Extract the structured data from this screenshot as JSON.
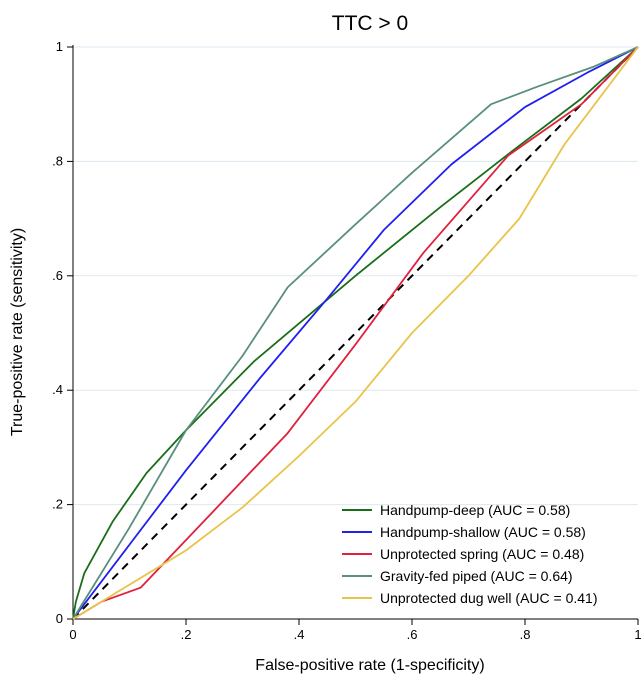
{
  "chart_data": {
    "type": "line",
    "title": "TTC > 0",
    "xlabel": "False-positive rate (1-specificity)",
    "ylabel": "True-positive rate (sensitivity)",
    "xlim": [
      0,
      1
    ],
    "ylim": [
      0,
      1
    ],
    "x_ticks": [
      "0",
      ".2",
      ".4",
      ".6",
      ".8",
      "1"
    ],
    "y_ticks": [
      "0",
      ".2",
      ".4",
      ".6",
      ".8",
      "1"
    ],
    "grid": "horizontal",
    "legend_position": "bottom-right",
    "reference_line": {
      "style": "dashed",
      "color": "#000000",
      "points": [
        [
          0,
          0
        ],
        [
          1,
          1
        ]
      ]
    },
    "series": [
      {
        "name": "Handpump-deep (AUC = 0.58)",
        "color": "#1a6e1a",
        "points": [
          [
            0,
            0
          ],
          [
            0.005,
            0.03
          ],
          [
            0.02,
            0.08
          ],
          [
            0.07,
            0.17
          ],
          [
            0.13,
            0.255
          ],
          [
            0.2,
            0.33
          ],
          [
            0.32,
            0.45
          ],
          [
            0.5,
            0.6
          ],
          [
            0.65,
            0.72
          ],
          [
            0.78,
            0.82
          ],
          [
            0.9,
            0.91
          ],
          [
            1,
            1
          ]
        ]
      },
      {
        "name": "Handpump-shallow (AUC = 0.58)",
        "color": "#1f1ff0",
        "points": [
          [
            0,
            0
          ],
          [
            0.1,
            0.13
          ],
          [
            0.2,
            0.26
          ],
          [
            0.33,
            0.42
          ],
          [
            0.45,
            0.56
          ],
          [
            0.55,
            0.68
          ],
          [
            0.67,
            0.795
          ],
          [
            0.8,
            0.895
          ],
          [
            0.91,
            0.955
          ],
          [
            1,
            1
          ]
        ]
      },
      {
        "name": "Unprotected spring (AUC = 0.48)",
        "color": "#e0203c",
        "points": [
          [
            0,
            0
          ],
          [
            0.05,
            0.03
          ],
          [
            0.12,
            0.055
          ],
          [
            0.25,
            0.19
          ],
          [
            0.38,
            0.325
          ],
          [
            0.5,
            0.48
          ],
          [
            0.62,
            0.64
          ],
          [
            0.77,
            0.81
          ],
          [
            0.9,
            0.9
          ],
          [
            1,
            1
          ]
        ]
      },
      {
        "name": "Gravity-fed piped (AUC = 0.64)",
        "color": "#5a8f7b",
        "points": [
          [
            0,
            0
          ],
          [
            0.1,
            0.16
          ],
          [
            0.2,
            0.33
          ],
          [
            0.3,
            0.46
          ],
          [
            0.38,
            0.58
          ],
          [
            0.5,
            0.69
          ],
          [
            0.6,
            0.78
          ],
          [
            0.74,
            0.9
          ],
          [
            0.82,
            0.93
          ],
          [
            0.92,
            0.965
          ],
          [
            1,
            1
          ]
        ]
      },
      {
        "name": "Unprotected dug well (AUC = 0.41)",
        "color": "#e8c44a",
        "points": [
          [
            0,
            0
          ],
          [
            0.1,
            0.06
          ],
          [
            0.2,
            0.12
          ],
          [
            0.3,
            0.195
          ],
          [
            0.4,
            0.285
          ],
          [
            0.5,
            0.38
          ],
          [
            0.6,
            0.5
          ],
          [
            0.7,
            0.6
          ],
          [
            0.79,
            0.7
          ],
          [
            0.87,
            0.83
          ],
          [
            1,
            1
          ]
        ]
      }
    ]
  }
}
